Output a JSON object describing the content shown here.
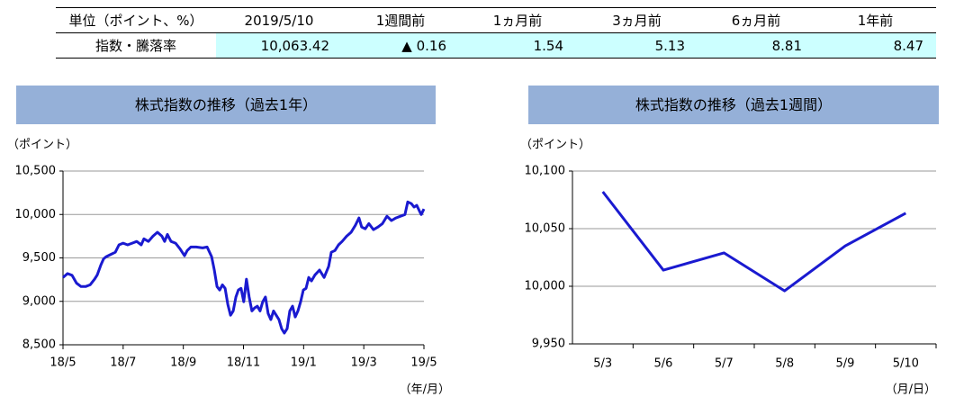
{
  "table": {
    "header": [
      "単位（ポイント、%）",
      "2019/5/10",
      "1週間前",
      "1ヵ月前",
      "3ヵ月前",
      "6ヵ月前",
      "1年前"
    ],
    "rows": [
      [
        "指数・騰落率",
        "10,063.42",
        "▲ 0.16",
        "1.54",
        "5.13",
        "8.81",
        "8.47"
      ]
    ]
  },
  "chart_data": [
    {
      "type": "line",
      "title": "株式指数の推移（過去1年）",
      "y_unit": "（ポイント）",
      "x_label": "（年/月）",
      "color": "#1a1ad0",
      "x": [
        0,
        0.15,
        0.3,
        0.45,
        0.6,
        0.75,
        0.9,
        1.05,
        1.14,
        1.26,
        1.35,
        1.44,
        1.56,
        1.74,
        1.86,
        2.0,
        2.15,
        2.3,
        2.45,
        2.6,
        2.69,
        2.84,
        2.99,
        3.14,
        3.29,
        3.38,
        3.47,
        3.59,
        3.74,
        3.89,
        4.04,
        4.13,
        4.25,
        4.43,
        4.64,
        4.79,
        4.94,
        5.03,
        5.12,
        5.21,
        5.3,
        5.39,
        5.48,
        5.57,
        5.66,
        5.75,
        5.83,
        5.92,
        6.01,
        6.1,
        6.19,
        6.28,
        6.37,
        6.46,
        6.55,
        6.64,
        6.73,
        6.82,
        6.91,
        7.0,
        7.09,
        7.18,
        7.27,
        7.36,
        7.45,
        7.54,
        7.63,
        7.72,
        7.81,
        7.9,
        7.99,
        8.08,
        8.17,
        8.26,
        8.38,
        8.53,
        8.68,
        8.83,
        8.92,
        9.04,
        9.16,
        9.28,
        9.43,
        9.58,
        9.72,
        9.84,
        9.93,
        10.05,
        10.17,
        10.32,
        10.47,
        10.62,
        10.77,
        10.92,
        11.07,
        11.22,
        11.37,
        11.46,
        11.58,
        11.67,
        11.76,
        11.85,
        11.91,
        12.0
      ],
      "values": [
        9275,
        9320,
        9300,
        9210,
        9170,
        9170,
        9190,
        9255,
        9305,
        9420,
        9490,
        9515,
        9535,
        9565,
        9650,
        9670,
        9650,
        9670,
        9690,
        9650,
        9720,
        9690,
        9750,
        9795,
        9750,
        9690,
        9770,
        9690,
        9670,
        9605,
        9525,
        9585,
        9625,
        9625,
        9615,
        9625,
        9515,
        9360,
        9170,
        9130,
        9190,
        9150,
        8965,
        8840,
        8890,
        9050,
        9130,
        9150,
        8995,
        9255,
        9050,
        8890,
        8925,
        8945,
        8890,
        8995,
        9050,
        8860,
        8790,
        8890,
        8840,
        8790,
        8685,
        8635,
        8685,
        8890,
        8945,
        8820,
        8890,
        8995,
        9130,
        9150,
        9275,
        9235,
        9305,
        9360,
        9275,
        9400,
        9565,
        9585,
        9650,
        9690,
        9750,
        9795,
        9875,
        9960,
        9855,
        9835,
        9895,
        9825,
        9855,
        9895,
        9980,
        9930,
        9960,
        9980,
        10000,
        10145,
        10125,
        10085,
        10105,
        10040,
        10000,
        10063.42
      ],
      "xlim": [
        0,
        12
      ],
      "xticks": [
        {
          "value": 0,
          "label": "18/5"
        },
        {
          "value": 2,
          "label": "18/7"
        },
        {
          "value": 4,
          "label": "18/9"
        },
        {
          "value": 6,
          "label": "18/11"
        },
        {
          "value": 8,
          "label": "19/1"
        },
        {
          "value": 10,
          "label": "19/3"
        },
        {
          "value": 12,
          "label": "19/5"
        }
      ],
      "ylim": [
        8500,
        10500
      ],
      "yticks": [
        {
          "value": 8500,
          "label": "8,500"
        },
        {
          "value": 9000,
          "label": "9,000"
        },
        {
          "value": 9500,
          "label": "9,500"
        },
        {
          "value": 10000,
          "label": "10,000"
        },
        {
          "value": 10500,
          "label": "10,500"
        }
      ],
      "grid": true
    },
    {
      "type": "line",
      "title": "株式指数の推移（過去1週間）",
      "y_unit": "（ポイント）",
      "x_label": "（月/日）",
      "color": "#1a1ad0",
      "categories": [
        "5/3",
        "5/6",
        "5/7",
        "5/8",
        "5/9",
        "5/10"
      ],
      "values": [
        10082,
        10014,
        10029,
        9996,
        10035,
        10063.42
      ],
      "ylim": [
        9950,
        10100
      ],
      "yticks": [
        {
          "value": 9950,
          "label": "9,950"
        },
        {
          "value": 10000,
          "label": "10,000"
        },
        {
          "value": 10050,
          "label": "10,050"
        },
        {
          "value": 10100,
          "label": "10,100"
        }
      ],
      "grid": true
    }
  ]
}
